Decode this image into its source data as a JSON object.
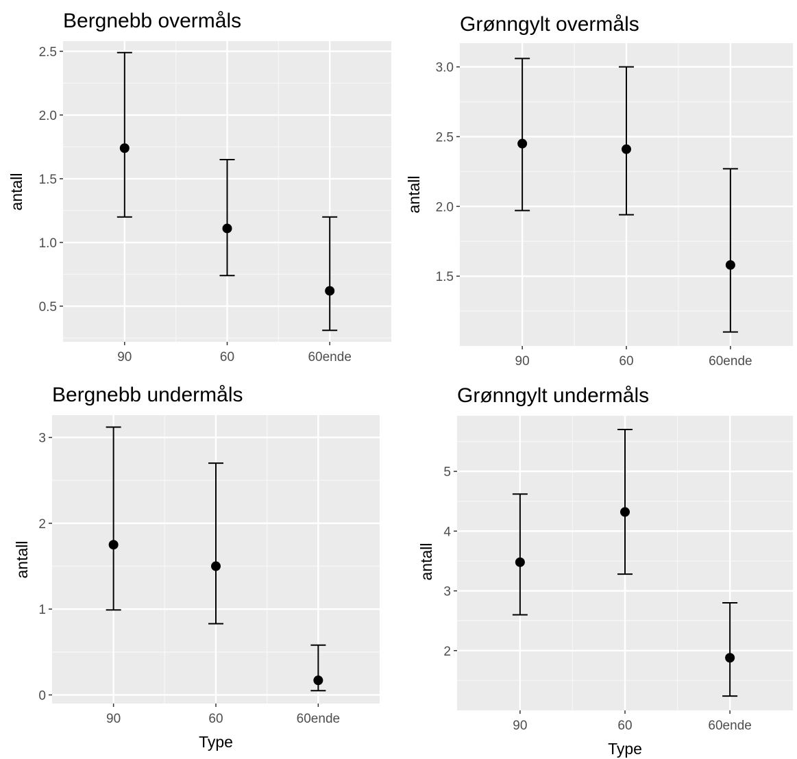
{
  "style": {
    "panel_bg": "#ebebeb",
    "major_grid": "#ffffff",
    "minor_grid": "#f5f5f5",
    "tick_color": "#333333",
    "point_color": "#000000"
  },
  "chart_data": [
    {
      "type": "scatter",
      "title": "Bergnebb overmåls",
      "xlabel": "",
      "ylabel": "antall",
      "categories": [
        "90",
        "60",
        "60ende"
      ],
      "values": [
        1.74,
        1.11,
        0.62
      ],
      "lower": [
        1.2,
        0.74,
        0.31
      ],
      "upper": [
        2.49,
        1.65,
        1.2
      ],
      "ylim": [
        0.22,
        2.58
      ],
      "yticks": [
        0.5,
        1.0,
        1.5,
        2.0,
        2.5
      ],
      "ytick_labels": [
        "0.5",
        "1.0",
        "1.5",
        "2.0",
        "2.5"
      ],
      "grid": true
    },
    {
      "type": "scatter",
      "title": "Grønngylt overmåls",
      "xlabel": "",
      "ylabel": "antall",
      "categories": [
        "90",
        "60",
        "60ende"
      ],
      "values": [
        2.45,
        2.41,
        1.58
      ],
      "lower": [
        1.97,
        1.94,
        1.1
      ],
      "upper": [
        3.06,
        3.0,
        2.27
      ],
      "ylim": [
        1.0,
        3.17
      ],
      "yticks": [
        1.5,
        2.0,
        2.5,
        3.0
      ],
      "ytick_labels": [
        "1.5",
        "2.0",
        "2.5",
        "3.0"
      ],
      "grid": true
    },
    {
      "type": "scatter",
      "title": "Bergnebb undermåls",
      "xlabel": "Type",
      "ylabel": "antall",
      "categories": [
        "90",
        "60",
        "60ende"
      ],
      "values": [
        1.75,
        1.5,
        0.17
      ],
      "lower": [
        0.99,
        0.83,
        0.05
      ],
      "upper": [
        3.12,
        2.7,
        0.58
      ],
      "ylim": [
        -0.1,
        3.26
      ],
      "yticks": [
        0,
        1,
        2,
        3
      ],
      "ytick_labels": [
        "0",
        "1",
        "2",
        "3"
      ],
      "grid": true
    },
    {
      "type": "scatter",
      "title": "Grønngylt undermåls",
      "xlabel": "Type",
      "ylabel": "antall",
      "categories": [
        "90",
        "60",
        "60ende"
      ],
      "values": [
        3.48,
        4.32,
        1.88
      ],
      "lower": [
        2.6,
        3.28,
        1.24
      ],
      "upper": [
        4.62,
        5.7,
        2.8
      ],
      "ylim": [
        1.0,
        5.93
      ],
      "yticks": [
        2,
        3,
        4,
        5
      ],
      "ytick_labels": [
        "2",
        "3",
        "4",
        "5"
      ],
      "grid": true
    }
  ]
}
